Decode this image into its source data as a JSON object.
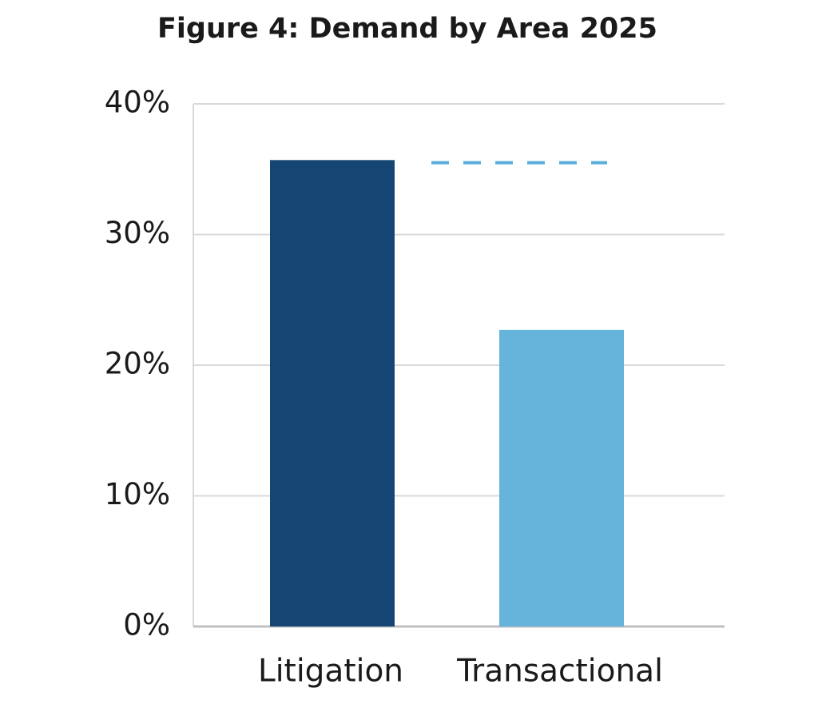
{
  "chart_data": {
    "type": "bar",
    "title": "Figure 4: Demand by Area 2025",
    "categories": [
      "Litigation",
      "Transactional"
    ],
    "values": [
      35.7,
      22.7
    ],
    "colors": [
      "#154673",
      "#66b3db"
    ],
    "ylim": [
      0,
      40
    ],
    "yticks": [
      {
        "value": 0,
        "label": "0%"
      },
      {
        "value": 10,
        "label": "10%"
      },
      {
        "value": 20,
        "label": "20%"
      },
      {
        "value": 30,
        "label": "30%"
      },
      {
        "value": 40,
        "label": "40%"
      }
    ],
    "grid": true,
    "reference_line": {
      "value": 35.5,
      "color": "#5aaedb",
      "style": "dashed"
    }
  }
}
